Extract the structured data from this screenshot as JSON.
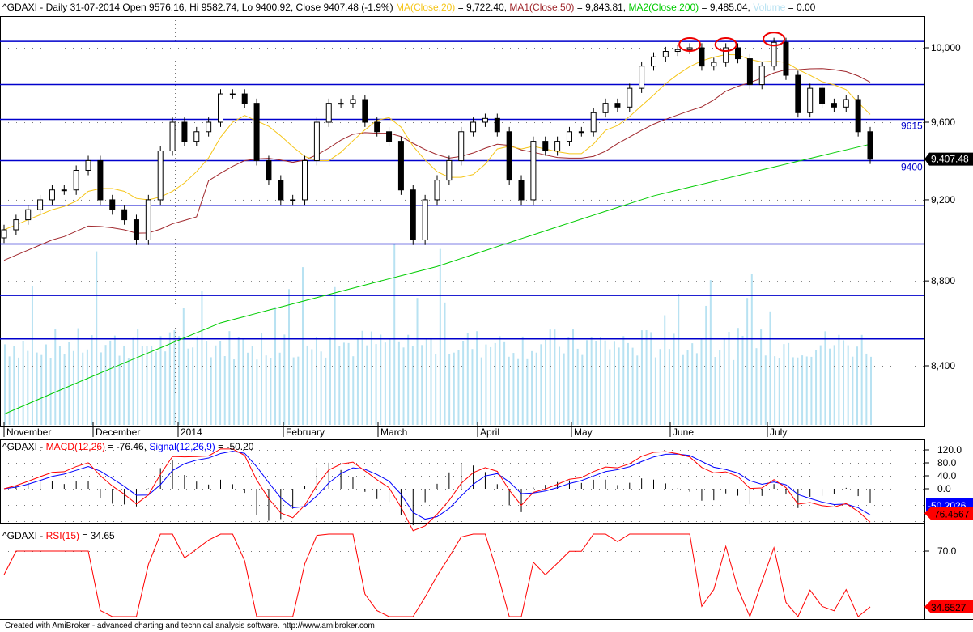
{
  "header": {
    "main": "^GDAXI - Daily 31-07-2014 Open 9576.16, Hi 9582.74, Lo 9400.92, Close 9407.48 (-1.9%)",
    "ma20_label": "MA(Close,20)",
    "ma20_value": " = 9,722.40, ",
    "ma50_label": "MA1(Close,50)",
    "ma50_value": " = 9,843.81, ",
    "ma200_label": "MA2(Close,200)",
    "ma200_value": " = 9,485.04, ",
    "volume_label": "Volume",
    "volume_value": " = 0.00",
    "macd_prefix": "^GDAXI - ",
    "macd_label": "MACD(12,26)",
    "macd_value": " = -76.46, ",
    "signal_label": "Signal(12,26,9)",
    "signal_value": " = -50.20",
    "rsi_prefix": "^GDAXI - ",
    "rsi_label": "RSI(15)",
    "rsi_value": " = 34.65"
  },
  "footer": "Created with AmiBroker - advanced charting and technical analysis software. http://www.amibroker.com",
  "colors": {
    "ma20": "#f5c518",
    "ma50": "#a0282d",
    "ma200": "#00cc00",
    "volume": "#b8e2f2",
    "levels": "#0000cc",
    "macd": "#ff0000",
    "signal": "#0000ff",
    "rsi": "#ff0000"
  },
  "chart_data": [
    {
      "type": "candlestick",
      "scale": "log",
      "x_tick_labels": [
        "November",
        "December",
        "2014",
        "February",
        "March",
        "April",
        "May",
        "June",
        "July"
      ],
      "y_tick_labels": [
        "10,000",
        "9,600",
        "9,200",
        "8,800",
        "8,400"
      ],
      "y_ticks": [
        10000,
        9600,
        9200,
        8800,
        8400
      ],
      "last_price_label": "9,407.48",
      "closes": [
        9050,
        9100,
        9150,
        9200,
        9250,
        9250,
        9350,
        9400,
        9200,
        9150,
        9100,
        9000,
        9200,
        9450,
        9600,
        9500,
        9550,
        9600,
        9750,
        9750,
        9700,
        9400,
        9300,
        9200,
        9200,
        9400,
        9600,
        9700,
        9700,
        9720,
        9600,
        9550,
        9500,
        9250,
        9000,
        9200,
        9300,
        9400,
        9550,
        9600,
        9620,
        9550,
        9300,
        9200,
        9500,
        9450,
        9500,
        9550,
        9550,
        9650,
        9700,
        9680,
        9780,
        9900,
        9950,
        9980,
        9990,
        10000,
        9900,
        9920,
        10000,
        9940,
        9800,
        9900,
        10030,
        9850,
        9650,
        9780,
        9700,
        9680,
        9720,
        9550,
        9407.48
      ],
      "ma200": [
        8180,
        8600,
        8870,
        9220,
        9485
      ],
      "levels": [
        10035,
        9800,
        9615,
        9400,
        9170,
        8980,
        8730,
        8525
      ],
      "level_labels": [
        {
          "value": 9615,
          "text": "9615"
        },
        {
          "value": 9400,
          "text": "9400"
        }
      ],
      "circled_peaks_index": [
        57,
        60,
        64
      ]
    },
    {
      "type": "line",
      "y_tick_labels": [
        "120.0",
        "80.0",
        "40.0",
        "0.0"
      ],
      "y_ticks": [
        120,
        80,
        40,
        0
      ],
      "last_signal_label": "-50.2026",
      "last_macd_label": "-76.4567"
    },
    {
      "type": "line",
      "y_tick_labels": [
        "70.0"
      ],
      "y_ticks": [
        70
      ],
      "last_rsi_label": "34.6527"
    }
  ]
}
